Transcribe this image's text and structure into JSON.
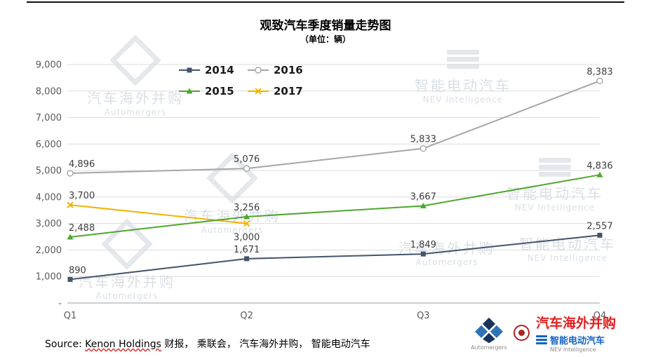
{
  "chart_data": {
    "type": "line",
    "title": "观致汽车季度销量走势图",
    "subtitle": "（单位：辆）",
    "categories": [
      "Q1",
      "Q2",
      "Q3",
      "Q4"
    ],
    "series": [
      {
        "name": "2014",
        "color": "#44546A",
        "marker": "square",
        "values": [
          890,
          1671,
          1849,
          2557
        ]
      },
      {
        "name": "2015",
        "color": "#4EA72E",
        "marker": "triangle",
        "values": [
          2488,
          3256,
          3667,
          4836
        ]
      },
      {
        "name": "2016",
        "color": "#A6A6A6",
        "marker": "circle-open",
        "values": [
          4896,
          5076,
          5833,
          8383
        ]
      },
      {
        "name": "2017",
        "color": "#F0B400",
        "marker": "x",
        "values": [
          3700,
          3000,
          null,
          null
        ]
      }
    ],
    "ylim": [
      0,
      9000
    ],
    "ytick_step": 1000,
    "ytick_labels": [
      "-",
      "1,000",
      "2,000",
      "3,000",
      "4,000",
      "5,000",
      "6,000",
      "7,000",
      "8,000",
      "9,000"
    ],
    "grid": true,
    "legend_position": "top-center",
    "legend_rows": [
      [
        "2014",
        "2016"
      ],
      [
        "2015",
        "2017"
      ]
    ],
    "label_below": {
      "2017": [
        1
      ]
    },
    "draw_order": [
      "2016",
      "2017",
      "2015",
      "2014"
    ]
  },
  "source": {
    "prefix": "Source: ",
    "publisher": "Kenon Holdings",
    "rest": " 财报， 乘联会， 汽车海外并购， 智能电动汽车"
  },
  "watermark": {
    "brand1": "汽车海外并购",
    "brand1_sub": "Automergers",
    "brand2": "智能电动汽车",
    "brand2_sub": "NEV Intelligence"
  },
  "footer": {
    "brand_red": "汽车海外并购",
    "brand_blue": "智能电动汽车",
    "automergers_sub": "Automergers",
    "nev_sub": "NEV Intelligence"
  }
}
